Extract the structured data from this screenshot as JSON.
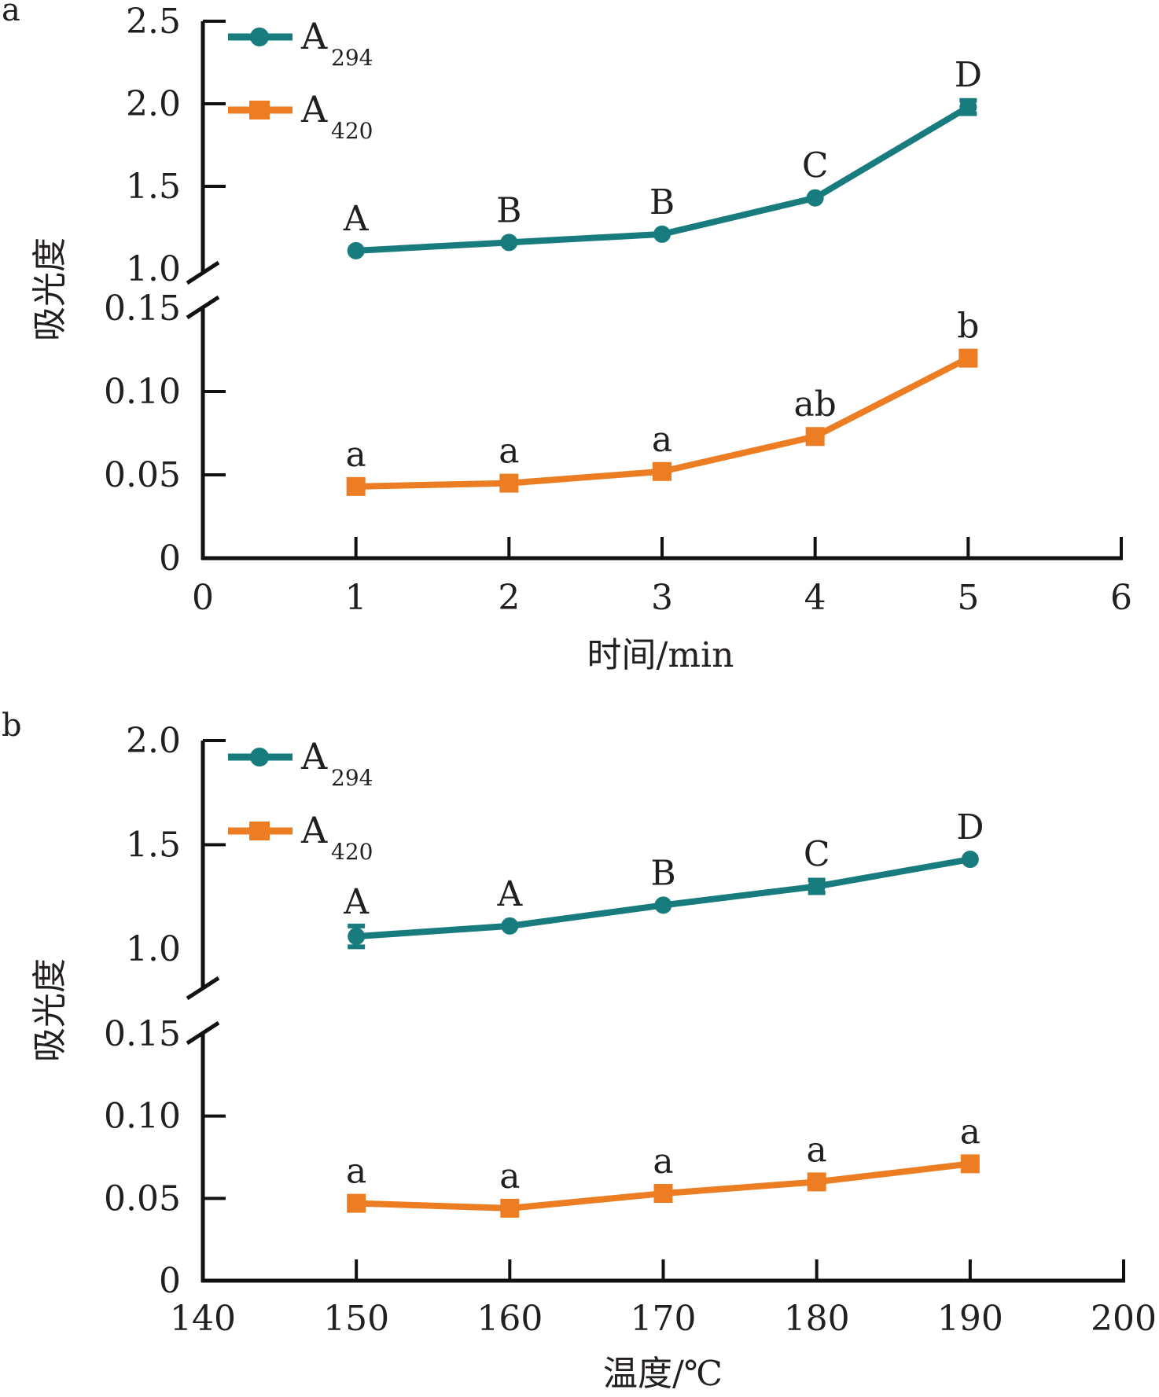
{
  "colors": {
    "teal": "#187b7d",
    "orange": "#ec7d22",
    "axis": "#111111",
    "text": "#231f20"
  },
  "chart_data": [
    {
      "panel": "a",
      "type": "line",
      "xlabel": "时间/min",
      "ylabel": "吸光度",
      "xlim": [
        0,
        6
      ],
      "x_ticks": [
        "0",
        "1",
        "2",
        "3",
        "4",
        "5",
        "6"
      ],
      "y_axis_broken": true,
      "ylim_upper": [
        1.0,
        2.5
      ],
      "ylim_lower": [
        0,
        0.15
      ],
      "y_ticks_upper": [
        "1.0",
        "1.5",
        "2.0",
        "2.5"
      ],
      "y_ticks_lower": [
        "0",
        "0.05",
        "0.10",
        "0.15"
      ],
      "legend": "top-left",
      "x": [
        1,
        2,
        3,
        4,
        5
      ],
      "series": [
        {
          "name": "A",
          "sub": "294",
          "color": "teal",
          "marker": "circle",
          "segment": "upper",
          "values": [
            1.11,
            1.16,
            1.21,
            1.43,
            1.98
          ],
          "errors": [
            0.01,
            0.01,
            0.01,
            0.01,
            0.04
          ],
          "labels": [
            "A",
            "B",
            "B",
            "C",
            "D"
          ]
        },
        {
          "name": "A",
          "sub": "420",
          "color": "orange",
          "marker": "square",
          "segment": "lower",
          "values": [
            0.043,
            0.045,
            0.052,
            0.073,
            0.12
          ],
          "errors": [
            0.001,
            0.001,
            0.001,
            0.002,
            0.002
          ],
          "labels": [
            "a",
            "a",
            "a",
            "ab",
            "b"
          ]
        }
      ]
    },
    {
      "panel": "b",
      "type": "line",
      "xlabel": "温度/℃",
      "ylabel": "吸光度",
      "xlim": [
        140,
        200
      ],
      "x_ticks": [
        "140",
        "150",
        "160",
        "170",
        "180",
        "190",
        "200"
      ],
      "y_axis_broken": true,
      "ylim_upper": [
        1.0,
        2.0
      ],
      "ylim_lower": [
        0,
        0.15
      ],
      "y_ticks_upper": [
        "1.0",
        "1.5",
        "2.0"
      ],
      "y_ticks_lower": [
        "0",
        "0.05",
        "0.10",
        "0.15"
      ],
      "legend": "top-left",
      "x": [
        150,
        160,
        170,
        180,
        190
      ],
      "series": [
        {
          "name": "A",
          "sub": "294",
          "color": "teal",
          "marker": "circle",
          "segment": "upper",
          "values": [
            1.06,
            1.11,
            1.21,
            1.3,
            1.43
          ],
          "errors": [
            0.05,
            0.01,
            0.01,
            0.03,
            0.01
          ],
          "labels": [
            "A",
            "A",
            "B",
            "C",
            "D"
          ]
        },
        {
          "name": "A",
          "sub": "420",
          "color": "orange",
          "marker": "square",
          "segment": "lower",
          "values": [
            0.047,
            0.044,
            0.053,
            0.06,
            0.071
          ],
          "errors": [
            0.001,
            0.001,
            0.001,
            0.001,
            0.001
          ],
          "labels": [
            "a",
            "a",
            "a",
            "a",
            "a"
          ]
        }
      ]
    }
  ]
}
